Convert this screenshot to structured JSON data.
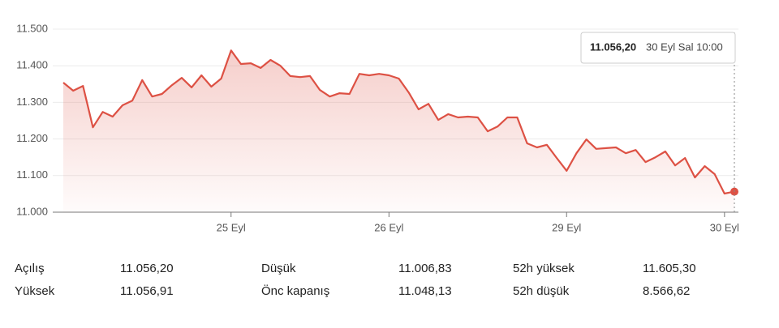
{
  "chart_data": {
    "type": "line",
    "categories": [
      null,
      null,
      null,
      null,
      null,
      null,
      null,
      null,
      null,
      null,
      null,
      null,
      null,
      null,
      null,
      null,
      null,
      "25 Eyl",
      null,
      null,
      null,
      null,
      null,
      null,
      null,
      null,
      null,
      null,
      null,
      null,
      null,
      null,
      null,
      "26 Eyl",
      null,
      null,
      null,
      null,
      null,
      null,
      null,
      null,
      null,
      null,
      null,
      null,
      null,
      null,
      null,
      null,
      null,
      "29 Eyl",
      null,
      null,
      null,
      null,
      null,
      null,
      null,
      null,
      null,
      null,
      null,
      null,
      null,
      null,
      null,
      "30 Eyl",
      null
    ],
    "values": [
      11354,
      11332,
      11345,
      11232,
      11274,
      11261,
      11292,
      11305,
      11361,
      11316,
      11323,
      11347,
      11367,
      11341,
      11374,
      11343,
      11365,
      11442,
      11405,
      11407,
      11394,
      11416,
      11400,
      11372,
      11369,
      11372,
      11334,
      11316,
      11325,
      11323,
      11378,
      11374,
      11378,
      11374,
      11365,
      11327,
      11281,
      11296,
      11252,
      11268,
      11259,
      11261,
      11259,
      11221,
      11234,
      11259,
      11259,
      11188,
      11177,
      11184,
      11148,
      11113,
      11161,
      11199,
      11173,
      11175,
      11177,
      11161,
      11170,
      11137,
      11150,
      11166,
      11128,
      11148,
      11095,
      11126,
      11104,
      11051,
      11056.2
    ],
    "color": "#dd5144",
    "ylim": [
      11000,
      11520
    ],
    "yticks": [
      {
        "value": 11000,
        "label": "11.000"
      },
      {
        "value": 11100,
        "label": "11.100"
      },
      {
        "value": 11200,
        "label": "11.200"
      },
      {
        "value": 11300,
        "label": "11.300"
      },
      {
        "value": 11400,
        "label": "11.400"
      },
      {
        "value": 11500,
        "label": "11.500"
      }
    ],
    "grid": true,
    "tooltip": {
      "value": "11.056,20",
      "time": "30 Eyl Sal 10:00"
    }
  },
  "stats": [
    [
      "Açılış",
      "11.056,20",
      "Düşük",
      "11.006,83",
      "52h yüksek",
      "11.605,30"
    ],
    [
      "Yüksek",
      "11.056,91",
      "Önc kapanış",
      "11.048,13",
      "52h düşük",
      "8.566,62"
    ]
  ]
}
